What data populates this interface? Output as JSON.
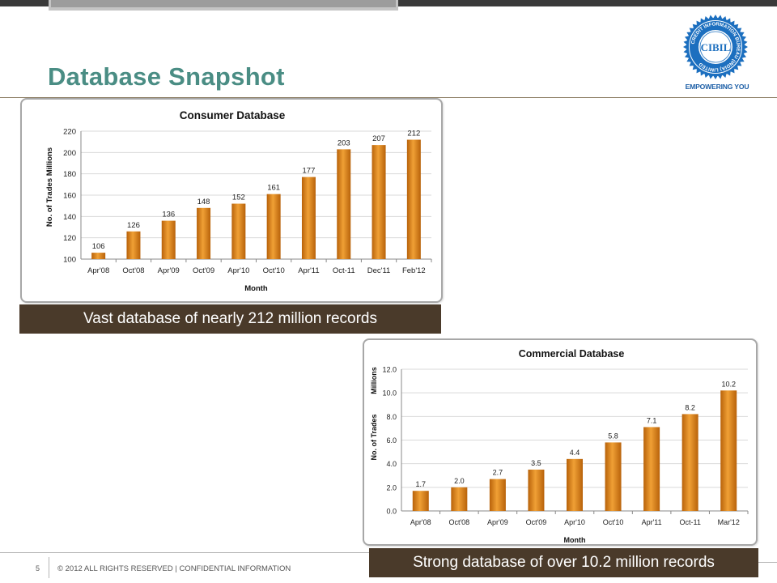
{
  "slide": {
    "title": "Database Snapshot",
    "page_number": "5",
    "footer": "© 2012 ALL RIGHTS RESERVED | CONFIDENTIAL INFORMATION"
  },
  "logo": {
    "name": "CIBIL",
    "ring_text": "CREDIT INFORMATION BUREAU (INDIA) LIMITED",
    "tagline": "EMPOWERING YOU"
  },
  "colors": {
    "title": "#4a8d84",
    "bar": "#d07a12",
    "caption_bg": "#4a3a2a",
    "logo_blue": "#1c6fbf"
  },
  "captions": {
    "consumer": "Vast database of nearly 212 million records",
    "commercial": "Strong database of over 10.2 million records"
  },
  "chart_data": [
    {
      "type": "bar",
      "title": "Consumer Database",
      "xlabel": "Month",
      "ylabel": "No. of Trades  Millions",
      "categories": [
        "Apr'08",
        "Oct'08",
        "Apr'09",
        "Oct'09",
        "Apr'10",
        "Oct'10",
        "Apr'11",
        "Oct-11",
        "Dec'11",
        "Feb'12"
      ],
      "values": [
        106,
        126,
        136,
        148,
        152,
        161,
        177,
        203,
        207,
        212
      ],
      "value_labels": [
        "106",
        "126",
        "136",
        "148",
        "152",
        "161",
        "177",
        "203",
        "207",
        "212"
      ],
      "ylim": [
        100,
        220
      ],
      "yticks": [
        "100",
        "120",
        "140",
        "160",
        "180",
        "200",
        "220"
      ],
      "grid": true,
      "legend": "none"
    },
    {
      "type": "bar",
      "title": "Commercial Database",
      "xlabel": "Month",
      "ylabel": "No. of Trades",
      "ylabel2": "Millions",
      "categories": [
        "Apr'08",
        "Oct'08",
        "Apr'09",
        "Oct'09",
        "Apr'10",
        "Oct'10",
        "Apr'11",
        "Oct-11",
        "Mar'12"
      ],
      "values": [
        1.7,
        2.0,
        2.7,
        3.5,
        4.4,
        5.8,
        7.1,
        8.2,
        10.2
      ],
      "value_labels": [
        "1.7",
        "2.0",
        "2.7",
        "3.5",
        "4.4",
        "5.8",
        "7.1",
        "8.2",
        "10.2"
      ],
      "ylim": [
        0,
        12
      ],
      "yticks": [
        "0.0",
        "2.0",
        "4.0",
        "6.0",
        "8.0",
        "10.0",
        "12.0"
      ],
      "grid": true,
      "legend": "none"
    }
  ]
}
